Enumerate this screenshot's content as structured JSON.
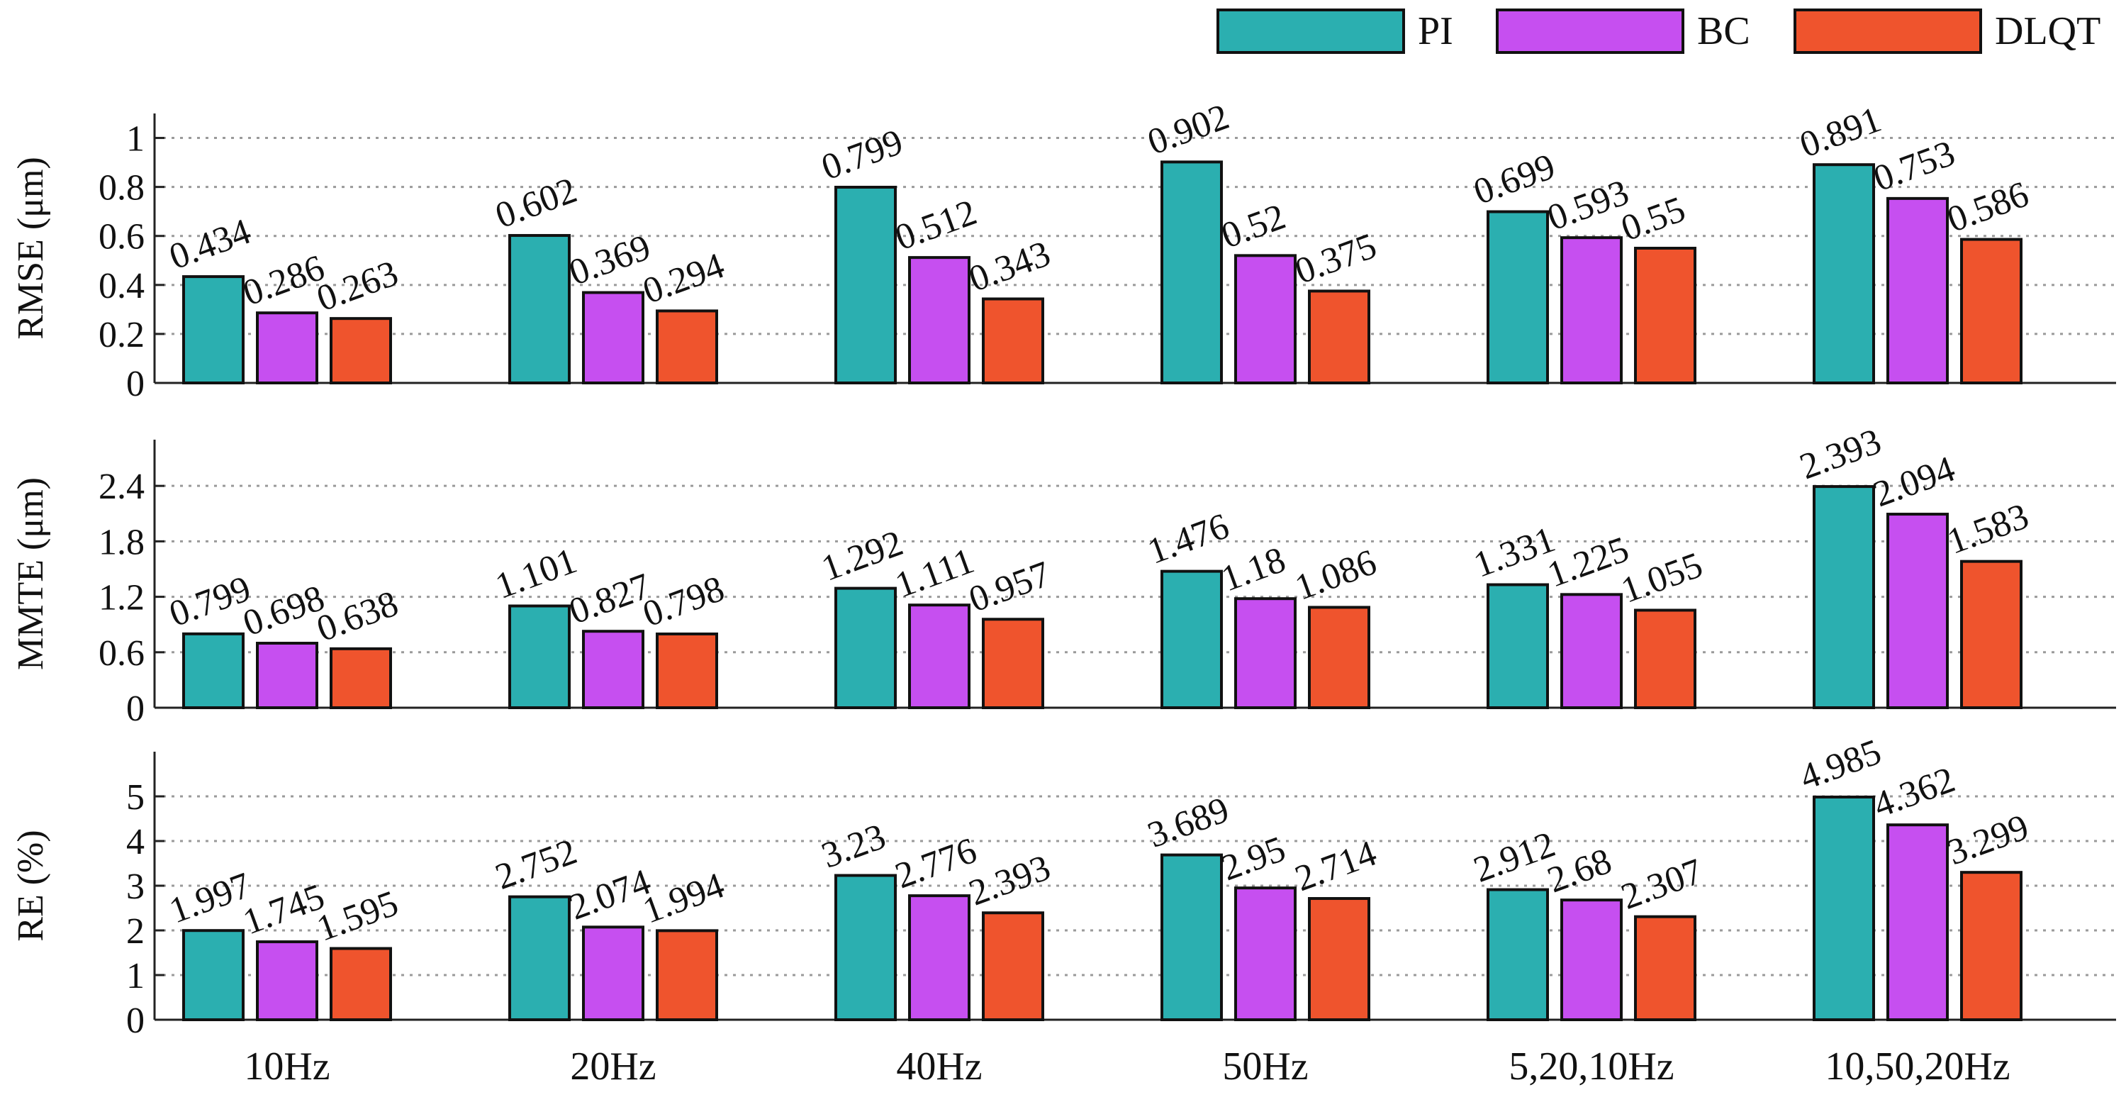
{
  "chart_data": {
    "type": "bar",
    "categories": [
      "10Hz",
      "20Hz",
      "40Hz",
      "50Hz",
      "5,20,10Hz",
      "10,50,20Hz"
    ],
    "legend": [
      {
        "name": "PI",
        "color": "#2bafb0"
      },
      {
        "name": "BC",
        "color": "#c64ff0"
      },
      {
        "name": "DLQT",
        "color": "#ef542d"
      }
    ],
    "legend_position": "top-right",
    "grid": true,
    "panels": [
      {
        "ylabel": "RMSE (μm)",
        "ylim": [
          0,
          1.1
        ],
        "yticks": [
          0,
          0.2,
          0.4,
          0.6,
          0.8,
          1
        ],
        "ytick_labels": [
          "0",
          "0.2",
          "0.4",
          "0.6",
          "0.8",
          "1"
        ],
        "series": [
          {
            "name": "PI",
            "values": [
              0.434,
              0.602,
              0.799,
              0.902,
              0.699,
              0.891
            ],
            "labels": [
              "0.434",
              "0.602",
              "0.799",
              "0.902",
              "0.699",
              "0.891"
            ]
          },
          {
            "name": "BC",
            "values": [
              0.286,
              0.369,
              0.512,
              0.52,
              0.593,
              0.753
            ],
            "labels": [
              "0.286",
              "0.369",
              "0.512",
              "0.52",
              "0.593",
              "0.753"
            ]
          },
          {
            "name": "DLQT",
            "values": [
              0.263,
              0.294,
              0.343,
              0.375,
              0.55,
              0.586
            ],
            "labels": [
              "0.263",
              "0.294",
              "0.343",
              "0.375",
              "0.55",
              "0.586"
            ]
          }
        ]
      },
      {
        "ylabel": "MMTE (μm)",
        "ylim": [
          0,
          2.9
        ],
        "yticks": [
          0,
          0.6,
          1.2,
          1.8,
          2.4
        ],
        "ytick_labels": [
          "0",
          "0.6",
          "1.2",
          "1.8",
          "2.4"
        ],
        "series": [
          {
            "name": "PI",
            "values": [
              0.799,
              1.101,
              1.292,
              1.476,
              1.331,
              2.393
            ],
            "labels": [
              "0.799",
              "1.101",
              "1.292",
              "1.476",
              "1.331",
              "2.393"
            ]
          },
          {
            "name": "BC",
            "values": [
              0.698,
              0.827,
              1.111,
              1.18,
              1.225,
              2.094
            ],
            "labels": [
              "0.698",
              "0.827",
              "1.111",
              "1.18",
              "1.225",
              "2.094"
            ]
          },
          {
            "name": "DLQT",
            "values": [
              0.638,
              0.798,
              0.957,
              1.086,
              1.055,
              1.583
            ],
            "labels": [
              "0.638",
              "0.798",
              "0.957",
              "1.086",
              "1.055",
              "1.583"
            ]
          }
        ]
      },
      {
        "ylabel": "RE (%)",
        "ylim": [
          0,
          6
        ],
        "yticks": [
          0,
          1,
          2,
          3,
          4,
          5
        ],
        "ytick_labels": [
          "0",
          "1",
          "2",
          "3",
          "4",
          "5"
        ],
        "series": [
          {
            "name": "PI",
            "values": [
              1.997,
              2.752,
              3.23,
              3.689,
              2.912,
              4.985
            ],
            "labels": [
              "1.997",
              "2.752",
              "3.23",
              "3.689",
              "2.912",
              "4.985"
            ]
          },
          {
            "name": "BC",
            "values": [
              1.745,
              2.074,
              2.776,
              2.95,
              2.68,
              4.362
            ],
            "labels": [
              "1.745",
              "2.074",
              "2.776",
              "2.95",
              "2.68",
              "4.362"
            ]
          },
          {
            "name": "DLQT",
            "values": [
              1.595,
              1.994,
              2.393,
              2.714,
              2.307,
              3.299
            ],
            "labels": [
              "1.595",
              "1.994",
              "2.393",
              "2.714",
              "2.307",
              "3.299"
            ]
          }
        ]
      }
    ]
  }
}
